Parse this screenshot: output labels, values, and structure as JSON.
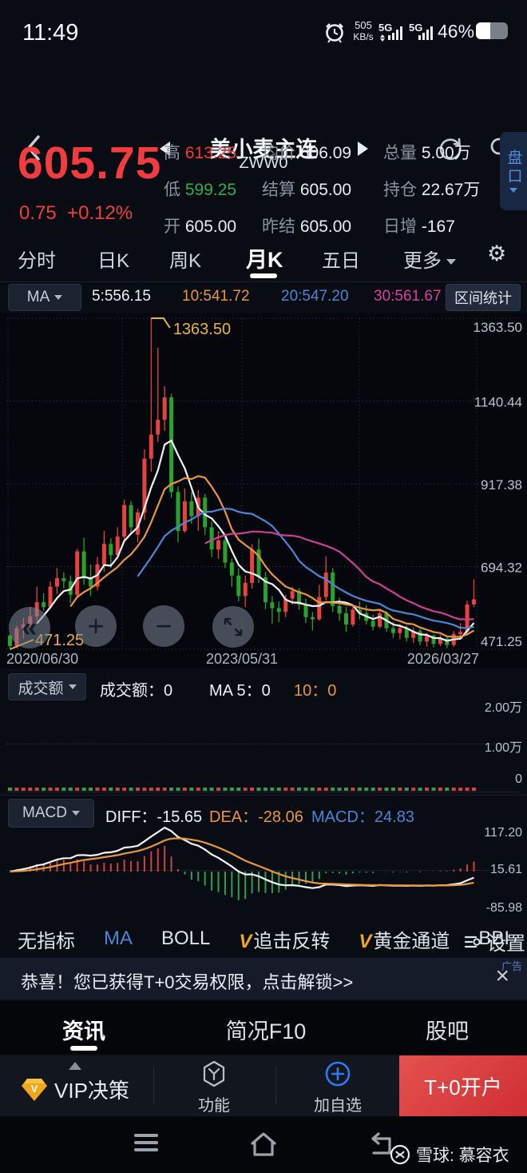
{
  "status_bar": {
    "time": "11:49",
    "net_speed": "505",
    "net_unit": "KB/s",
    "net1": "5G",
    "net2": "5G",
    "battery_pct": "46%"
  },
  "header": {
    "title": "美小麦主连",
    "code": "ZWW0"
  },
  "quote": {
    "price": "605.75",
    "change": "0.75",
    "change_pct": "+0.12%",
    "high_label": "高",
    "high": "613.25",
    "low_label": "低",
    "low": "599.25",
    "open_label": "开",
    "open": "605.00",
    "avg_label": "均价",
    "avg": "606.09",
    "settle_label": "结算",
    "settle": "605.00",
    "prev_label": "昨结",
    "prev": "605.00",
    "vol_label": "总量",
    "vol": "5.00万",
    "oi_label": "持仓",
    "oi": "22.67万",
    "oichg_label": "日增",
    "oichg": "-167",
    "pankou": "盘口"
  },
  "period_tabs": {
    "items": [
      "分时",
      "日K",
      "周K",
      "月K",
      "五日"
    ],
    "active_index": 3,
    "more": "更多"
  },
  "ma_bar": {
    "selector": "MA",
    "ma5": "5:556.15",
    "ma10": "10:541.72",
    "ma20": "20:547.20",
    "ma30": "30:561.67",
    "range_stat": "区间统计"
  },
  "chart_data": {
    "type": "candlestick",
    "title": "美小麦主连 月K",
    "y_ticks": [
      "1363.50",
      "1140.44",
      "917.38",
      "694.32",
      "471.25"
    ],
    "y_range": [
      471.25,
      1363.5
    ],
    "x_ticks": [
      "2020/06/30",
      "2023/05/31",
      "2026/03/27"
    ],
    "high_marker": "1363.50",
    "low_marker": "471.25",
    "ma_periods": [
      5,
      10,
      20,
      30
    ],
    "candles": [
      [
        508,
        512,
        471.25,
        480
      ],
      [
        480,
        535,
        475,
        528
      ],
      [
        528,
        556,
        500,
        538
      ],
      [
        538,
        585,
        530,
        560
      ],
      [
        560,
        640,
        548,
        598
      ],
      [
        598,
        622,
        575,
        585
      ],
      [
        585,
        655,
        580,
        640
      ],
      [
        640,
        690,
        620,
        663
      ],
      [
        663,
        678,
        635,
        655
      ],
      [
        655,
        670,
        595,
        618
      ],
      [
        618,
        742,
        612,
        735
      ],
      [
        735,
        772,
        645,
        662
      ],
      [
        662,
        700,
        615,
        640
      ],
      [
        640,
        720,
        630,
        700
      ],
      [
        700,
        790,
        680,
        755
      ],
      [
        755,
        770,
        690,
        725
      ],
      [
        725,
        800,
        720,
        775
      ],
      [
        775,
        875,
        760,
        860
      ],
      [
        860,
        870,
        780,
        800
      ],
      [
        780,
        850,
        760,
        840
      ],
      [
        840,
        1010,
        820,
        985
      ],
      [
        985,
        1363.5,
        950,
        1050
      ],
      [
        1050,
        1284,
        1030,
        1090
      ],
      [
        1090,
        1180,
        1060,
        1150
      ],
      [
        1150,
        1160,
        880,
        895
      ],
      [
        895,
        910,
        760,
        790
      ],
      [
        790,
        905,
        785,
        870
      ],
      [
        870,
        895,
        810,
        830
      ],
      [
        830,
        900,
        790,
        880
      ],
      [
        880,
        890,
        780,
        800
      ],
      [
        800,
        815,
        720,
        740
      ],
      [
        740,
        790,
        715,
        765
      ],
      [
        765,
        780,
        690,
        705
      ],
      [
        705,
        715,
        640,
        670
      ],
      [
        670,
        690,
        600,
        615
      ],
      [
        615,
        670,
        585,
        650
      ],
      [
        650,
        755,
        635,
        740
      ],
      [
        740,
        770,
        650,
        665
      ],
      [
        665,
        680,
        580,
        598
      ],
      [
        598,
        615,
        540,
        582
      ],
      [
        582,
        600,
        545,
        572
      ],
      [
        572,
        618,
        558,
        608
      ],
      [
        608,
        640,
        592,
        628
      ],
      [
        628,
        636,
        578,
        592
      ],
      [
        592,
        608,
        542,
        558
      ],
      [
        558,
        572,
        522,
        552
      ],
      [
        552,
        645,
        548,
        612
      ],
      [
        612,
        722,
        602,
        678
      ],
      [
        678,
        690,
        572,
        588
      ],
      [
        588,
        610,
        548,
        568
      ],
      [
        568,
        585,
        518,
        538
      ],
      [
        538,
        592,
        532,
        578
      ],
      [
        578,
        600,
        552,
        568
      ],
      [
        568,
        590,
        538,
        548
      ],
      [
        548,
        565,
        522,
        532
      ],
      [
        532,
        580,
        528,
        568
      ],
      [
        568,
        574,
        518,
        528
      ],
      [
        528,
        545,
        502,
        515
      ],
      [
        515,
        540,
        498,
        528
      ],
      [
        528,
        535,
        492,
        502
      ],
      [
        502,
        530,
        488,
        520
      ],
      [
        520,
        526,
        482,
        492
      ],
      [
        492,
        515,
        478,
        508
      ],
      [
        508,
        512,
        476,
        486
      ],
      [
        486,
        510,
        480,
        500
      ],
      [
        500,
        506,
        474,
        483
      ],
      [
        483,
        520,
        478,
        512
      ],
      [
        512,
        542,
        504,
        518
      ],
      [
        518,
        602,
        510,
        592
      ],
      [
        592,
        660,
        585,
        605.75
      ]
    ],
    "volume_sub": {
      "selector": "成交额",
      "turnover": "成交额：0",
      "ma5": "MA 5：0",
      "ma10": "10：0",
      "y_ticks": [
        "2.00万",
        "1.00万",
        "0"
      ]
    },
    "macd_sub": {
      "selector": "MACD",
      "diff": "DIFF：-15.65",
      "dea": "DEA：-28.06",
      "macd": "MACD：24.83",
      "y_ticks": [
        "117.20",
        "15.61",
        "-85.98"
      ]
    }
  },
  "indicator_bar": {
    "items": [
      {
        "label": "无指标",
        "vip": false,
        "active": false
      },
      {
        "label": "MA",
        "vip": false,
        "active": true
      },
      {
        "label": "BOLL",
        "vip": false,
        "active": false
      },
      {
        "label": "追击反转",
        "vip": true,
        "active": false
      },
      {
        "label": "黄金通道",
        "vip": true,
        "active": false
      },
      {
        "label": "BBI",
        "vip": false,
        "active": false
      }
    ],
    "vip_badge": "V",
    "settings": "设置"
  },
  "ad_banner": {
    "text": "恭喜！您已获得T+0交易权限，点击解锁>>",
    "tag": "广告",
    "close": "×"
  },
  "bottom_tabs": {
    "items": [
      "资讯",
      "简况F10",
      "股吧"
    ],
    "active_index": 0
  },
  "action_bar": {
    "vip": "VIP决策",
    "vip_badge": "V",
    "func": "功能",
    "add": "加自选",
    "open_account": "T+0开户"
  },
  "watermark": {
    "text": "雪球: 慕容衣"
  },
  "colors": {
    "up": "#e8413f",
    "down": "#27a22e",
    "accent_orange": "#e8973c",
    "accent_blue": "#4a86d8",
    "accent_magenta": "#cf3f96",
    "ma5_line": "#f2f4f6",
    "price_red": "#f23c40",
    "tick_text": "#b8c2d2",
    "hist_up": "#d34040",
    "hist_down": "#2e9e4f",
    "marker_yellow": "#e8b43d",
    "add_blue": "#2f7bf5",
    "open_red": "#d93438"
  }
}
